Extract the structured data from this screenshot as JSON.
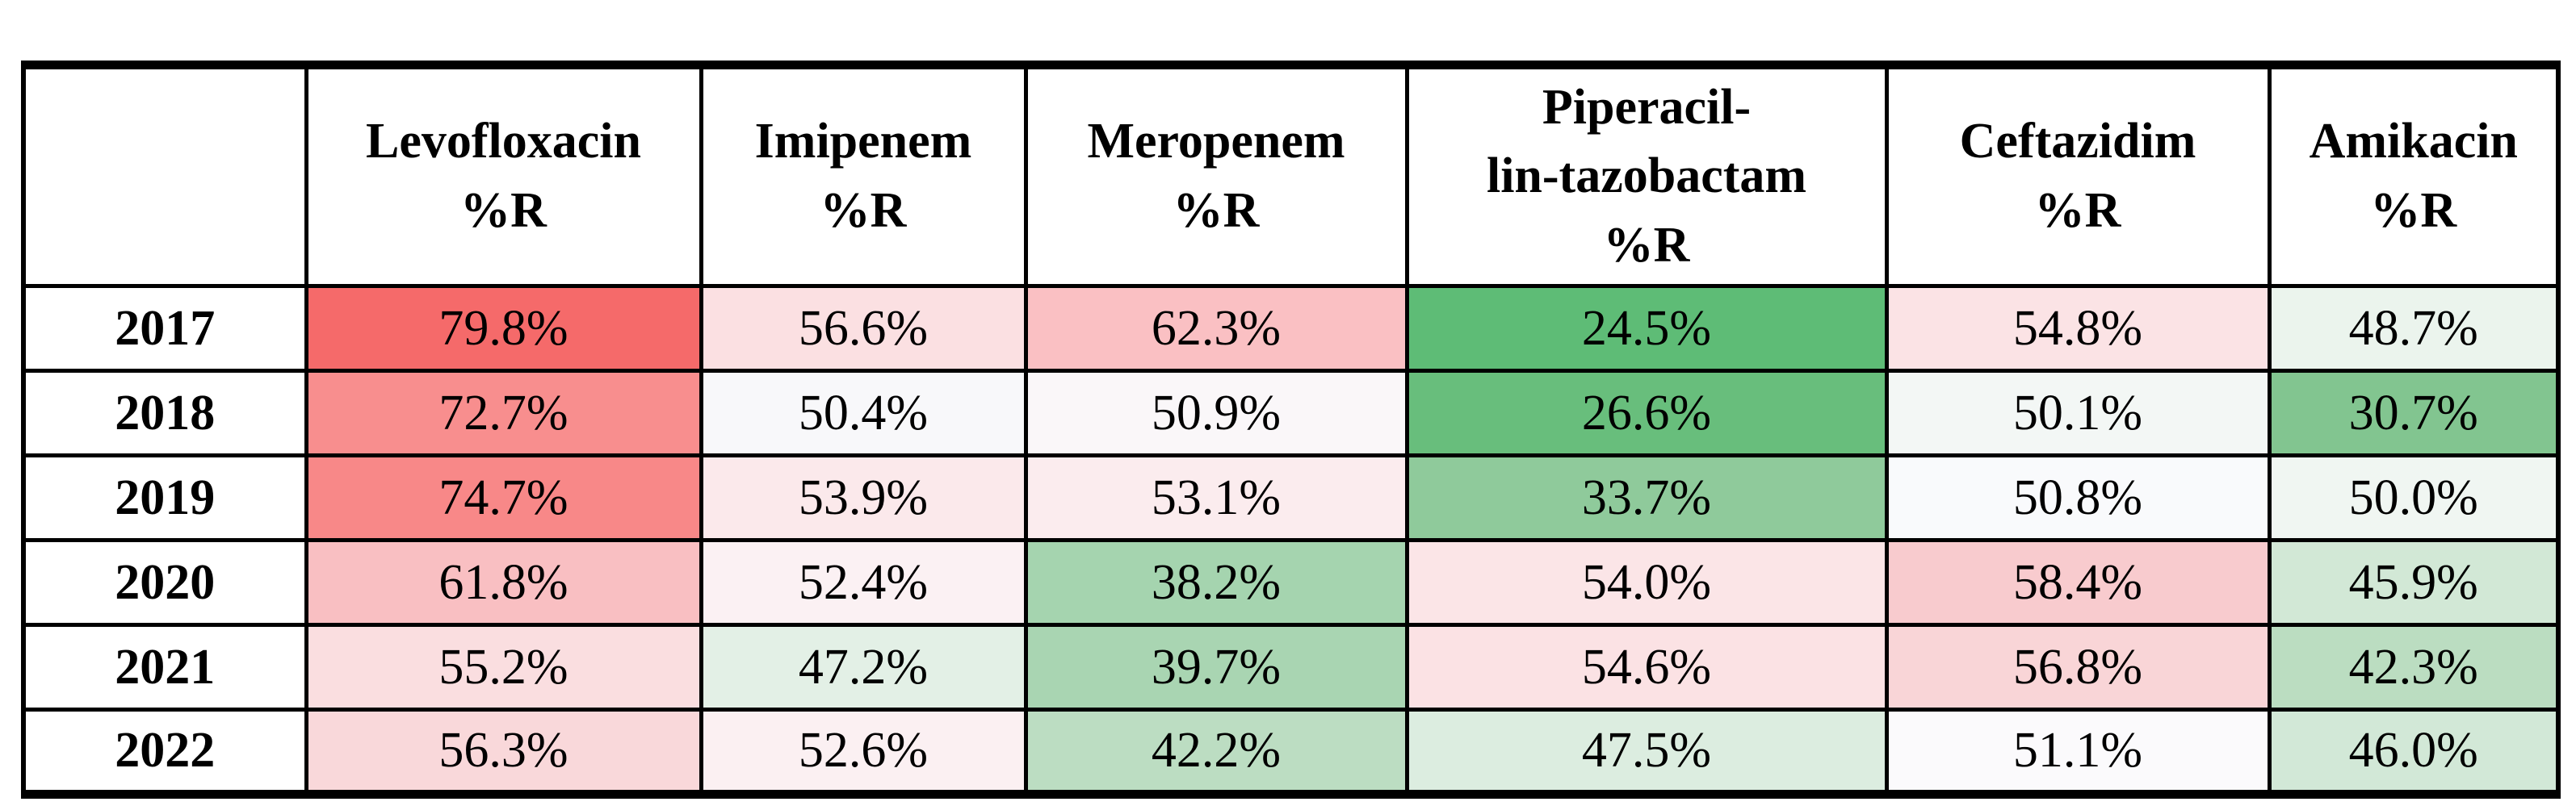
{
  "table": {
    "corner_label": "",
    "columns": [
      {
        "id": "levofloxacin",
        "label_lines": [
          "Levofloxacin",
          "%R"
        ]
      },
      {
        "id": "imipenem",
        "label_lines": [
          "Imipenem",
          "%R"
        ]
      },
      {
        "id": "meropenem",
        "label_lines": [
          "Meropenem",
          "%R"
        ]
      },
      {
        "id": "piperacillin-tazobactam",
        "label_lines": [
          "Piperacil-",
          "lin-tazobactam",
          "%R"
        ]
      },
      {
        "id": "ceftazidim",
        "label_lines": [
          "Ceftazidim",
          "%R"
        ]
      },
      {
        "id": "amikacin",
        "label_lines": [
          "Amikacin",
          "%R"
        ]
      }
    ],
    "rows": [
      {
        "year": "2017",
        "cells": [
          {
            "value": "79.8%",
            "color": "#F56A6A"
          },
          {
            "value": "56.6%",
            "color": "#FBE0E2"
          },
          {
            "value": "62.3%",
            "color": "#FAC0C3"
          },
          {
            "value": "24.5%",
            "color": "#5EBC76"
          },
          {
            "value": "54.8%",
            "color": "#FBE3E5"
          },
          {
            "value": "48.7%",
            "color": "#EBF4ED"
          }
        ]
      },
      {
        "year": "2018",
        "cells": [
          {
            "value": "72.7%",
            "color": "#F88E8E"
          },
          {
            "value": "50.4%",
            "color": "#F8F8FA"
          },
          {
            "value": "50.9%",
            "color": "#FAF7F9"
          },
          {
            "value": "26.6%",
            "color": "#68BE7C"
          },
          {
            "value": "50.1%",
            "color": "#F3F7F5"
          },
          {
            "value": "30.7%",
            "color": "#82C590"
          }
        ]
      },
      {
        "year": "2019",
        "cells": [
          {
            "value": "74.7%",
            "color": "#F88888"
          },
          {
            "value": "53.9%",
            "color": "#FBE9EB"
          },
          {
            "value": "53.1%",
            "color": "#FBECEE"
          },
          {
            "value": "33.7%",
            "color": "#8FCA9B"
          },
          {
            "value": "50.8%",
            "color": "#F9FAFC"
          },
          {
            "value": "50.0%",
            "color": "#F0F6F2"
          }
        ]
      },
      {
        "year": "2020",
        "cells": [
          {
            "value": "61.8%",
            "color": "#F9BFC2"
          },
          {
            "value": "52.4%",
            "color": "#FBF1F3"
          },
          {
            "value": "38.2%",
            "color": "#A5D4AF"
          },
          {
            "value": "54.0%",
            "color": "#FBE5E7"
          },
          {
            "value": "58.4%",
            "color": "#F8CBCE"
          },
          {
            "value": "45.9%",
            "color": "#D2E8D6"
          }
        ]
      },
      {
        "year": "2021",
        "cells": [
          {
            "value": "55.2%",
            "color": "#FADEE0"
          },
          {
            "value": "47.2%",
            "color": "#E3F0E6"
          },
          {
            "value": "39.7%",
            "color": "#A9D5B2"
          },
          {
            "value": "54.6%",
            "color": "#FBE2E4"
          },
          {
            "value": "56.8%",
            "color": "#F9D5D7"
          },
          {
            "value": "42.3%",
            "color": "#BBDDC1"
          }
        ]
      },
      {
        "year": "2022",
        "cells": [
          {
            "value": "56.3%",
            "color": "#F9D8DA"
          },
          {
            "value": "52.6%",
            "color": "#FBF0F2"
          },
          {
            "value": "42.2%",
            "color": "#BCDDC2"
          },
          {
            "value": "47.5%",
            "color": "#DCEDE0"
          },
          {
            "value": "51.1%",
            "color": "#FBFAFC"
          },
          {
            "value": "46.0%",
            "color": "#D2E8D7"
          }
        ]
      }
    ]
  },
  "chart_data": {
    "type": "table",
    "categories": [
      "2017",
      "2018",
      "2019",
      "2020",
      "2021",
      "2022"
    ],
    "series": [
      {
        "name": "Levofloxacin %R",
        "values": [
          79.8,
          72.7,
          74.7,
          61.8,
          55.2,
          56.3
        ]
      },
      {
        "name": "Imipenem %R",
        "values": [
          56.6,
          50.4,
          53.9,
          52.4,
          47.2,
          52.6
        ]
      },
      {
        "name": "Meropenem %R",
        "values": [
          62.3,
          50.9,
          53.1,
          38.2,
          39.7,
          42.2
        ]
      },
      {
        "name": "Piperacillin-tazobactam %R",
        "values": [
          24.5,
          26.6,
          33.7,
          54.0,
          54.6,
          47.5
        ]
      },
      {
        "name": "Ceftazidim %R",
        "values": [
          54.8,
          50.1,
          50.8,
          58.4,
          56.8,
          51.1
        ]
      },
      {
        "name": "Amikacin %R",
        "values": [
          48.7,
          30.7,
          50.0,
          45.9,
          42.3,
          46.0
        ]
      }
    ],
    "legend_position": "none",
    "grid": true
  },
  "colors": {
    "border": "#000000",
    "page_background": "#FFFFFF",
    "header_background": "#FFFFFF",
    "row_header_background": "#FFFFFF",
    "scale_high_red": "#F56A6A",
    "scale_mid_white": "#FBFAFC",
    "scale_low_green": "#5EBC76"
  }
}
